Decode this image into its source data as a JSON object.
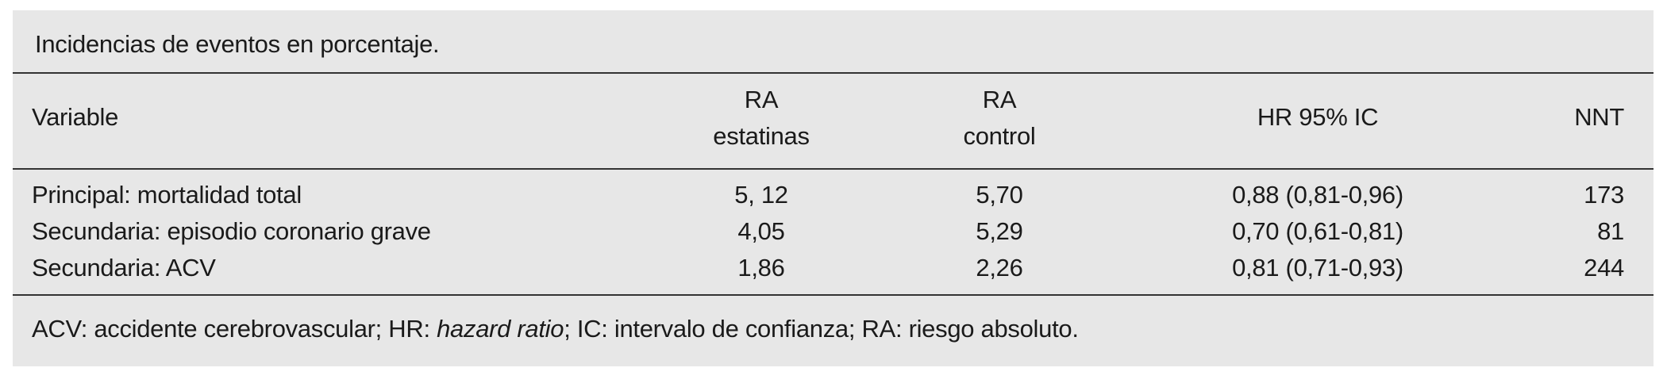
{
  "title": "Incidencias de eventos en porcentaje.",
  "table": {
    "header": [
      [
        "Variable"
      ],
      [
        "RA",
        "estatinas"
      ],
      [
        "RA",
        "control"
      ],
      [
        "HR 95% IC"
      ],
      [
        "NNT"
      ]
    ],
    "rows": [
      [
        "Principal: mortalidad total",
        "5, 12",
        "5,70",
        "0,88 (0,81-0,96)",
        "173"
      ],
      [
        "Secundaria: episodio coronario grave",
        "4,05",
        "5,29",
        "0,70 (0,61-0,81)",
        "81"
      ],
      [
        "Secundaria: ACV",
        "1,86",
        "2,26",
        "0,81 (0,71-0,93)",
        "244"
      ]
    ]
  },
  "footnote": [
    "ACV: accidente cerebrovascular; HR: ",
    "hazard ratio",
    "; IC: intervalo de confianza; RA: riesgo absoluto."
  ]
}
